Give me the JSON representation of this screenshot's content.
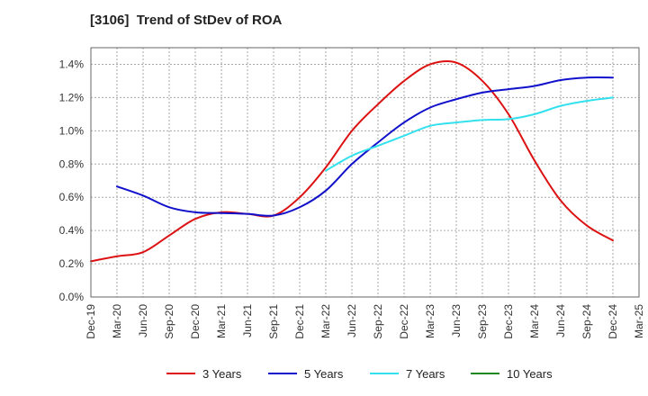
{
  "chart_data": {
    "type": "line",
    "title": "[3106]  Trend of StDev of ROA",
    "x": [
      "Dec-19",
      "Mar-20",
      "Jun-20",
      "Sep-20",
      "Dec-20",
      "Mar-21",
      "Jun-21",
      "Sep-21",
      "Dec-21",
      "Mar-22",
      "Jun-22",
      "Sep-22",
      "Dec-22",
      "Mar-23",
      "Jun-23",
      "Sep-23",
      "Dec-23",
      "Mar-24",
      "Jun-24",
      "Sep-24",
      "Dec-24",
      "Mar-25"
    ],
    "ylim": [
      0,
      1.5
    ],
    "yticks": [
      0.0,
      0.2,
      0.4,
      0.6,
      0.8,
      1.0,
      1.2,
      1.4
    ],
    "ytick_labels": [
      "0.0%",
      "0.2%",
      "0.4%",
      "0.6%",
      "0.8%",
      "1.0%",
      "1.2%",
      "1.4%"
    ],
    "y_unit": "%",
    "grid": true,
    "legend_position": "bottom",
    "series": [
      {
        "name": "3 Years",
        "color": "#dd1111",
        "values": [
          0.215,
          0.245,
          0.27,
          0.37,
          0.47,
          0.51,
          0.5,
          0.49,
          0.6,
          0.78,
          1.0,
          1.16,
          1.3,
          1.4,
          1.41,
          1.3,
          1.1,
          0.82,
          0.58,
          0.43,
          0.34,
          null
        ]
      },
      {
        "name": "5 Years",
        "color": "#1111cc",
        "values": [
          null,
          0.665,
          0.61,
          0.54,
          0.51,
          0.505,
          0.5,
          0.49,
          0.54,
          0.64,
          0.8,
          0.93,
          1.05,
          1.14,
          1.19,
          1.23,
          1.25,
          1.27,
          1.305,
          1.32,
          1.32,
          null
        ]
      },
      {
        "name": "7 Years",
        "color": "#33e0ee",
        "values": [
          null,
          null,
          null,
          null,
          null,
          null,
          null,
          null,
          null,
          0.76,
          0.85,
          0.91,
          0.97,
          1.03,
          1.05,
          1.065,
          1.07,
          1.1,
          1.15,
          1.18,
          1.2,
          null
        ]
      },
      {
        "name": "10 Years",
        "color": "#228822",
        "values": [
          null,
          null,
          null,
          null,
          null,
          null,
          null,
          null,
          null,
          null,
          null,
          null,
          null,
          null,
          null,
          null,
          null,
          null,
          null,
          null,
          null,
          null
        ]
      }
    ]
  }
}
